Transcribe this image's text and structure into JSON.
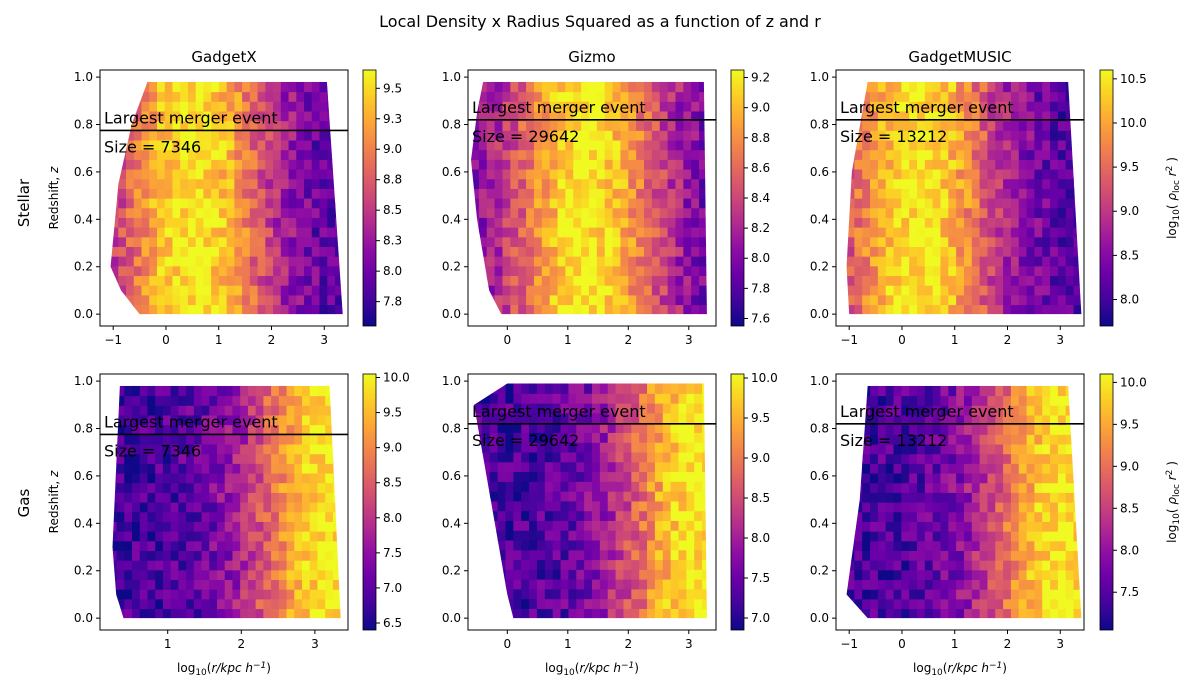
{
  "figure": {
    "suptitle": "Local Density x Radius Squared as a function of z and r",
    "row_labels": [
      "Stellar",
      "Gas"
    ],
    "ylabel": "Redshift, z",
    "xlabel": "log10(r/kpc h^-1)",
    "colorbar_label": "log10( ρ_loc r^2 )",
    "annotation_text": "Largest merger event"
  },
  "colors": {
    "colormap": "plasma",
    "merger_line": "#000000"
  },
  "chart_data": [
    {
      "type": "heatmap",
      "title": "GadgetX",
      "row": "Stellar",
      "xlim": [
        -1.25,
        3.45
      ],
      "ylim": [
        -0.05,
        1.03
      ],
      "xticks": [
        -1,
        0,
        1,
        2,
        3
      ],
      "yticks": [
        0.0,
        0.2,
        0.4,
        0.6,
        0.8,
        1.0
      ],
      "colorbar": {
        "range": [
          7.55,
          9.65
        ],
        "ticks": [
          7.75,
          8.0,
          8.25,
          8.5,
          8.75,
          9.0,
          9.25,
          9.5
        ]
      },
      "data_x_range": [
        -1.05,
        3.35
      ],
      "data_z_range": [
        0.0,
        0.98
      ],
      "peak_log_r": 0.5,
      "boundary": [
        [
          -0.5,
          0.0
        ],
        [
          -0.85,
          0.1
        ],
        [
          -1.05,
          0.2
        ],
        [
          -0.9,
          0.55
        ],
        [
          -0.65,
          0.8
        ],
        [
          -0.35,
          0.98
        ],
        [
          3.05,
          0.98
        ],
        [
          3.35,
          0.0
        ]
      ],
      "merger": {
        "z": 0.775,
        "label": "Largest merger event",
        "size_label": "Size = 7346"
      }
    },
    {
      "type": "heatmap",
      "title": "Gizmo",
      "row": "Stellar",
      "xlim": [
        -0.65,
        3.45
      ],
      "ylim": [
        -0.05,
        1.03
      ],
      "xticks": [
        0,
        1,
        2,
        3
      ],
      "yticks": [
        0.0,
        0.2,
        0.4,
        0.6,
        0.8,
        1.0
      ],
      "colorbar": {
        "range": [
          7.55,
          9.25
        ],
        "ticks": [
          7.6,
          7.8,
          8.0,
          8.2,
          8.4,
          8.6,
          8.8,
          9.0,
          9.2
        ]
      },
      "data_x_range": [
        -0.6,
        3.3
      ],
      "data_z_range": [
        0.0,
        0.98
      ],
      "peak_log_r": 1.3,
      "boundary": [
        [
          -0.1,
          0.0
        ],
        [
          -0.3,
          0.1
        ],
        [
          -0.5,
          0.4
        ],
        [
          -0.6,
          0.65
        ],
        [
          -0.5,
          0.85
        ],
        [
          -0.4,
          0.98
        ],
        [
          3.25,
          0.98
        ],
        [
          3.3,
          0.0
        ]
      ],
      "merger": {
        "z": 0.82,
        "label": "Largest merger event",
        "size_label": "Size = 29642"
      }
    },
    {
      "type": "heatmap",
      "title": "GadgetMUSIC",
      "row": "Stellar",
      "xlim": [
        -1.25,
        3.45
      ],
      "ylim": [
        -0.05,
        1.03
      ],
      "xticks": [
        -1,
        0,
        1,
        2,
        3
      ],
      "yticks": [
        0.0,
        0.2,
        0.4,
        0.6,
        0.8,
        1.0
      ],
      "colorbar": {
        "range": [
          7.7,
          10.6
        ],
        "ticks": [
          8.0,
          8.5,
          9.0,
          9.5,
          10.0,
          10.5
        ]
      },
      "data_x_range": [
        -1.05,
        3.4
      ],
      "data_z_range": [
        0.0,
        0.98
      ],
      "peak_log_r": 0.3,
      "boundary": [
        [
          -1.0,
          0.0
        ],
        [
          -1.05,
          0.2
        ],
        [
          -0.95,
          0.6
        ],
        [
          -0.65,
          0.98
        ],
        [
          3.15,
          0.98
        ],
        [
          3.4,
          0.0
        ]
      ],
      "merger": {
        "z": 0.82,
        "label": "Largest merger event",
        "size_label": "Size = 13212"
      }
    },
    {
      "type": "heatmap",
      "title": "",
      "row": "Gas",
      "xlim": [
        0.08,
        3.45
      ],
      "ylim": [
        -0.05,
        1.03
      ],
      "xticks": [
        1,
        2,
        3
      ],
      "yticks": [
        0.0,
        0.2,
        0.4,
        0.6,
        0.8,
        1.0
      ],
      "colorbar": {
        "range": [
          6.4,
          10.05
        ],
        "ticks": [
          6.5,
          7.0,
          7.5,
          8.0,
          8.5,
          9.0,
          9.5,
          10.0
        ]
      },
      "data_x_range": [
        0.2,
        3.35
      ],
      "data_z_range": [
        0.0,
        0.98
      ],
      "peak_log_r": 3.2,
      "boundary": [
        [
          0.4,
          0.0
        ],
        [
          0.3,
          0.1
        ],
        [
          0.25,
          0.3
        ],
        [
          0.35,
          0.98
        ],
        [
          3.2,
          0.98
        ],
        [
          3.35,
          0.0
        ]
      ],
      "merger": {
        "z": 0.775,
        "label": "Largest merger event",
        "size_label": "Size = 7346"
      }
    },
    {
      "type": "heatmap",
      "title": "",
      "row": "Gas",
      "xlim": [
        -0.65,
        3.45
      ],
      "ylim": [
        -0.05,
        1.03
      ],
      "xticks": [
        0,
        1,
        2,
        3
      ],
      "yticks": [
        0.0,
        0.2,
        0.4,
        0.6,
        0.8,
        1.0
      ],
      "colorbar": {
        "range": [
          6.85,
          10.05
        ],
        "ticks": [
          7.0,
          7.5,
          8.0,
          8.5,
          9.0,
          9.5,
          10.0
        ]
      },
      "data_x_range": [
        -0.55,
        3.35
      ],
      "data_z_range": [
        0.0,
        0.99
      ],
      "peak_log_r": 3.2,
      "boundary": [
        [
          0.1,
          0.0
        ],
        [
          0.0,
          0.1
        ],
        [
          -0.55,
          0.9
        ],
        [
          0.0,
          0.99
        ],
        [
          3.25,
          0.99
        ],
        [
          3.3,
          0.0
        ]
      ],
      "merger": {
        "z": 0.82,
        "label": "Largest merger event",
        "size_label": "Size = 29642"
      }
    },
    {
      "type": "heatmap",
      "title": "",
      "row": "Gas",
      "xlim": [
        -1.25,
        3.45
      ],
      "ylim": [
        -0.05,
        1.03
      ],
      "xticks": [
        -1,
        0,
        1,
        2,
        3
      ],
      "yticks": [
        0.0,
        0.2,
        0.4,
        0.6,
        0.8,
        1.0
      ],
      "colorbar": {
        "range": [
          7.05,
          10.1
        ],
        "ticks": [
          7.5,
          8.0,
          8.5,
          9.0,
          9.5,
          10.0
        ]
      },
      "data_x_range": [
        -1.05,
        3.4
      ],
      "data_z_range": [
        0.0,
        0.98
      ],
      "peak_log_r": 3.1,
      "boundary": [
        [
          -0.65,
          0.0
        ],
        [
          -1.05,
          0.1
        ],
        [
          -0.8,
          0.5
        ],
        [
          -0.65,
          0.98
        ],
        [
          3.15,
          0.98
        ],
        [
          3.4,
          0.0
        ]
      ],
      "merger": {
        "z": 0.82,
        "label": "Largest merger event",
        "size_label": "Size = 13212"
      }
    }
  ]
}
